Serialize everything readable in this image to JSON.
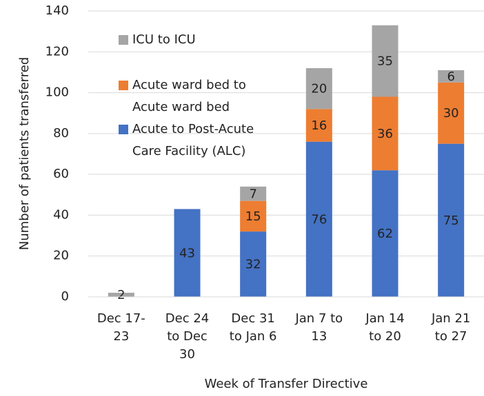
{
  "chart_data": {
    "type": "stacked_bar",
    "y_label": "Number of patients transferred",
    "x_label": "Week of Transfer Directive",
    "categories": [
      "Dec 17-23",
      "Dec 24 to Dec 30",
      "Dec 31 to Jan 6",
      "Jan 7 to 13",
      "Jan 14 to 20",
      "Jan 21 to 27"
    ],
    "series": [
      {
        "name": "Acute to Post-Acute Care Facility (ALC)",
        "color": "#4472c4",
        "values": [
          null,
          43,
          32,
          76,
          62,
          75
        ]
      },
      {
        "name": "Acute ward bed to Acute ward bed",
        "color": "#ed7d31",
        "values": [
          null,
          null,
          15,
          16,
          36,
          30
        ]
      },
      {
        "name": "ICU to ICU",
        "color": "#a5a5a5",
        "values": [
          2,
          null,
          7,
          20,
          35,
          6
        ]
      }
    ],
    "ylim": [
      0,
      140
    ],
    "yticks": [
      0,
      20,
      40,
      60,
      80,
      100,
      120,
      140
    ],
    "grid": true
  }
}
